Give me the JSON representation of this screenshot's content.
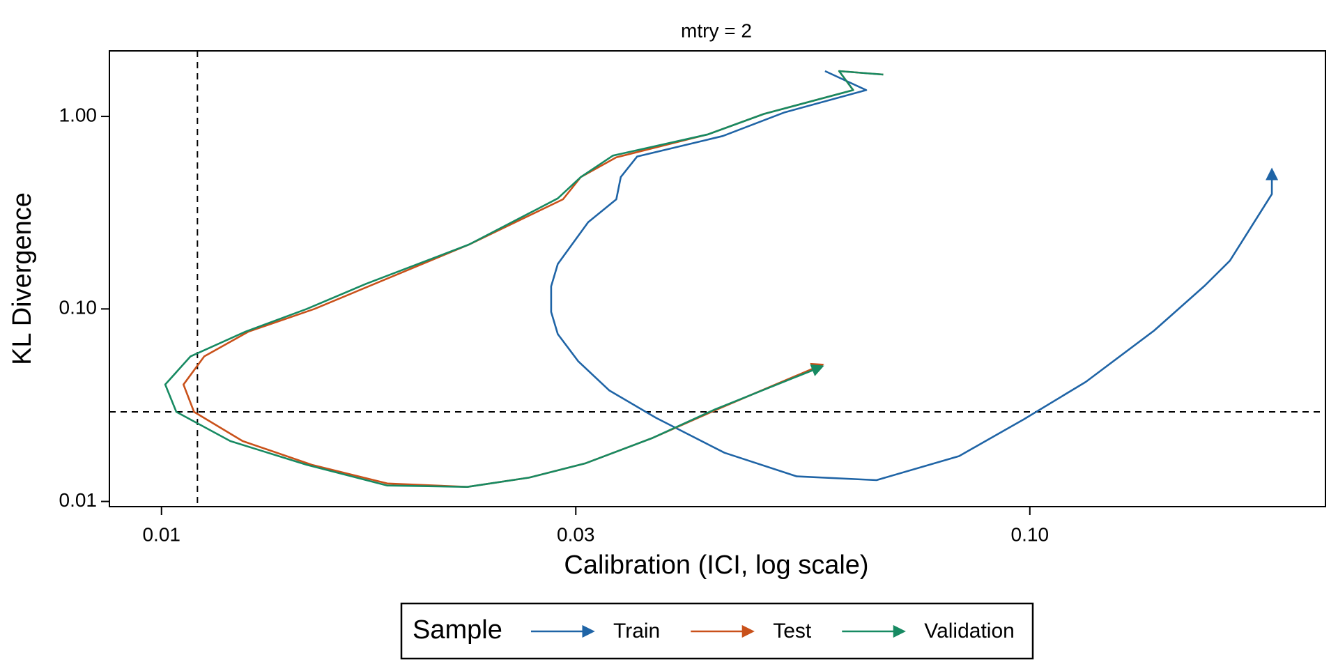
{
  "chart_data": {
    "type": "line",
    "title": "mtry = 2",
    "x_label": "Calibration (ICI, log scale)",
    "y_label": "KL Divergence",
    "log_x": true,
    "log_y": true,
    "xlim": [
      0.00871,
      0.219
    ],
    "ylim": [
      0.0094,
      2.19
    ],
    "xticks": [
      0.01,
      0.03,
      {
        "value": 0.1,
        "label": "0.10"
      }
    ],
    "yticks": [
      0.01,
      {
        "value": 0.1,
        "label": "0.10"
      },
      {
        "value": 1,
        "label": "1.00"
      }
    ],
    "vline": 0.011,
    "hline": 0.0292,
    "legend_title": "Sample",
    "legend": "bottom",
    "series": [
      {
        "name": "Train",
        "color": "#1f64a6",
        "x": [
          0.0581,
          0.0648,
          0.0522,
          0.0443,
          0.0353,
          0.0338,
          0.0334,
          0.031,
          0.0286,
          0.0281,
          0.0281,
          0.0286,
          0.0302,
          0.0328,
          0.0371,
          0.0445,
          0.0539,
          0.0666,
          0.0829,
          0.0984,
          0.116,
          0.139,
          0.159,
          0.17,
          0.19,
          0.19
        ],
        "values": [
          1.72,
          1.37,
          1.05,
          0.791,
          0.619,
          0.484,
          0.371,
          0.282,
          0.171,
          0.131,
          0.0965,
          0.074,
          0.0534,
          0.0377,
          0.0272,
          0.0179,
          0.0135,
          0.0129,
          0.0172,
          0.0267,
          0.0418,
          0.0771,
          0.132,
          0.178,
          0.395,
          0.526
        ]
      },
      {
        "name": "Test",
        "color": "#c9511a",
        "x": [
          0.0678,
          0.0603,
          0.0626,
          0.0494,
          0.0426,
          0.0334,
          0.0304,
          0.029,
          0.0226,
          0.015,
          0.0126,
          0.0112,
          0.0106,
          0.0109,
          0.0124,
          0.0149,
          0.0182,
          0.0225,
          0.0265,
          0.0308,
          0.0367,
          0.0441,
          0.0576
        ],
        "values": [
          1.65,
          1.72,
          1.37,
          1.03,
          0.807,
          0.613,
          0.484,
          0.371,
          0.216,
          0.1,
          0.0763,
          0.0567,
          0.0405,
          0.0292,
          0.0206,
          0.0155,
          0.0124,
          0.0119,
          0.0133,
          0.0158,
          0.0213,
          0.0307,
          0.0512
        ]
      },
      {
        "name": "Validation",
        "color": "#178a62",
        "x": [
          0.0678,
          0.0603,
          0.0626,
          0.0494,
          0.0426,
          0.0331,
          0.0304,
          0.0286,
          0.0226,
          0.0172,
          0.0147,
          0.0125,
          0.0108,
          0.0101,
          0.0104,
          0.012,
          0.0147,
          0.0182,
          0.0225,
          0.0265,
          0.0308,
          0.0367,
          0.0434,
          0.0576
        ],
        "values": [
          1.65,
          1.72,
          1.37,
          1.03,
          0.807,
          0.626,
          0.484,
          0.375,
          0.216,
          0.135,
          0.1,
          0.0763,
          0.0567,
          0.0405,
          0.0292,
          0.0206,
          0.0155,
          0.0121,
          0.0119,
          0.0133,
          0.0158,
          0.0213,
          0.0301,
          0.0502
        ]
      }
    ]
  }
}
